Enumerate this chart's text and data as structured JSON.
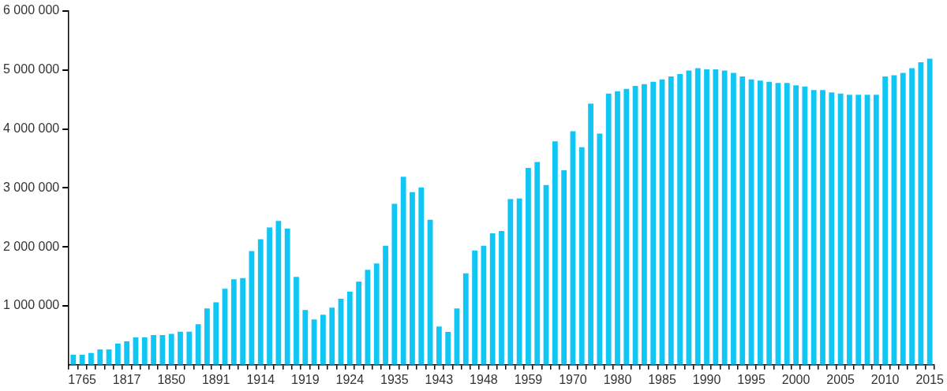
{
  "chart_data": {
    "type": "bar",
    "categories": [
      null,
      "1765",
      null,
      null,
      null,
      null,
      "1817",
      null,
      null,
      null,
      null,
      "1850",
      null,
      null,
      null,
      null,
      "1891",
      null,
      null,
      null,
      null,
      "1914",
      null,
      null,
      null,
      null,
      "1919",
      null,
      null,
      null,
      null,
      "1924",
      null,
      null,
      null,
      null,
      "1935",
      null,
      null,
      null,
      null,
      "1943",
      null,
      null,
      null,
      null,
      "1948",
      null,
      null,
      null,
      null,
      "1959",
      null,
      null,
      null,
      null,
      "1970",
      null,
      null,
      null,
      null,
      "1980",
      null,
      null,
      null,
      null,
      "1985",
      null,
      null,
      null,
      null,
      "1990",
      null,
      null,
      null,
      null,
      "1995",
      null,
      null,
      null,
      null,
      "2000",
      null,
      null,
      null,
      null,
      "2005",
      null,
      null,
      null,
      null,
      "2010",
      null,
      null,
      null,
      null,
      "2015"
    ],
    "values": [
      170000,
      170000,
      200000,
      260000,
      260000,
      360000,
      400000,
      465000,
      465000,
      505000,
      505000,
      527000,
      563000,
      563000,
      690000,
      955000,
      1060000,
      1290000,
      1450000,
      1470000,
      1930000,
      2130000,
      2330000,
      2440000,
      2310000,
      1490000,
      930000,
      770000,
      850000,
      970000,
      1120000,
      1240000,
      1410000,
      1610000,
      1720000,
      2020000,
      2730000,
      3190000,
      2930000,
      3010000,
      2460000,
      650000,
      560000,
      955000,
      1550000,
      1940000,
      2020000,
      2230000,
      2270000,
      2810000,
      2820000,
      3340000,
      3440000,
      3050000,
      3790000,
      3300000,
      3960000,
      3690000,
      4430000,
      3920000,
      4600000,
      4640000,
      4680000,
      4730000,
      4760000,
      4800000,
      4840000,
      4890000,
      4930000,
      4990000,
      5030000,
      5010000,
      5010000,
      4990000,
      4950000,
      4890000,
      4840000,
      4820000,
      4800000,
      4780000,
      4780000,
      4740000,
      4720000,
      4660000,
      4660000,
      4620000,
      4600000,
      4580000,
      4580000,
      4580000,
      4580000,
      4890000,
      4910000,
      4950000,
      5030000,
      5130000,
      5190000
    ],
    "color": "#0fc6f5",
    "ylim": [
      0,
      6000000
    ],
    "yticks": [
      {
        "value": 1000000,
        "label": "1 000 000"
      },
      {
        "value": 2000000,
        "label": "2 000 000"
      },
      {
        "value": 3000000,
        "label": "3 000 000"
      },
      {
        "value": 4000000,
        "label": "4 000 000"
      },
      {
        "value": 5000000,
        "label": "5 000 000"
      },
      {
        "value": 6000000,
        "label": "6 000 000"
      }
    ],
    "grid": false,
    "legend": false
  }
}
